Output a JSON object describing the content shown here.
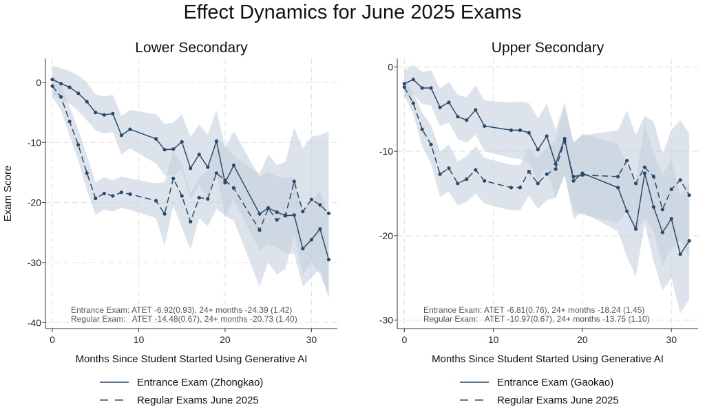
{
  "figure": {
    "title": "Effect Dynamics for June 2025 Exams"
  },
  "colors": {
    "line": "#2b4a6b",
    "band": "#c5d1dc",
    "grid": "#e3e3e3",
    "axis": "#333333",
    "annotation": "#555555"
  },
  "chart_data": [
    {
      "type": "line",
      "title": "Lower Secondary",
      "xlabel": "Months Since Student Started Using Generative AI",
      "ylabel": "Exam Score",
      "xlim": [
        -0.8,
        33
      ],
      "ylim": [
        -41,
        4
      ],
      "xticks": [
        0,
        10,
        20,
        30
      ],
      "yticks": [
        0,
        -10,
        -20,
        -30,
        -40
      ],
      "grid": true,
      "legend_position": "bottom",
      "annotations": [
        "Entrance Exam: ATET -6.92(0.93), 24+ months -24.39 (1.42)",
        "Regular Exam:   ATET -14.48(0.67), 24+ months -20.73 (1.40)"
      ],
      "series": [
        {
          "name": "Entrance Exam (Zhongkao)",
          "style": "solid",
          "points": [
            [
              0,
              0.5
            ],
            [
              1,
              -0.2
            ],
            [
              2,
              -0.8
            ],
            [
              3,
              -1.8
            ],
            [
              4,
              -3.2
            ],
            [
              5,
              -5.0
            ],
            [
              6,
              -5.4
            ],
            [
              7,
              -5.2
            ],
            [
              8,
              -8.8
            ],
            [
              9,
              -7.8
            ],
            [
              12,
              -9.4
            ],
            [
              13,
              -11.2
            ],
            [
              14,
              -11.1
            ],
            [
              15,
              -9.9
            ],
            [
              16,
              -14.3
            ],
            [
              17,
              -12.0
            ],
            [
              18,
              -14.1
            ],
            [
              19,
              -9.8
            ],
            [
              20,
              -16.7
            ],
            [
              21,
              -13.8
            ],
            [
              24,
              -21.9
            ],
            [
              25,
              -20.9
            ],
            [
              26,
              -21.6
            ],
            [
              27,
              -22.2
            ],
            [
              28,
              -22.1
            ],
            [
              29,
              -27.7
            ],
            [
              30,
              -26.2
            ],
            [
              31,
              -24.4
            ],
            [
              32,
              -29.5
            ]
          ],
          "ci_lower": [
            -2.0,
            -2.8,
            -3.5,
            -4.8,
            -6.3,
            -8.0,
            -8.5,
            -8.3,
            -12.0,
            -11.0,
            -13.5,
            -15.5,
            -15.5,
            -14.5,
            -19.5,
            -17.0,
            -19.5,
            -15.0,
            -22.5,
            -19.5,
            -28.0,
            -27.0,
            -27.5,
            -28.5,
            -28.5,
            -34.0,
            -32.5,
            -31.0,
            -36.0
          ],
          "ci_upper": [
            2.8,
            2.4,
            1.9,
            1.2,
            0.0,
            -2.0,
            -2.3,
            -2.1,
            -5.6,
            -4.6,
            -5.3,
            -6.9,
            -6.7,
            -5.3,
            -9.1,
            -7.0,
            -8.7,
            -4.6,
            -10.9,
            -8.1,
            -15.8,
            -14.8,
            -15.7,
            -15.9,
            -15.7,
            -21.4,
            -19.9,
            -17.8,
            -23.0
          ]
        },
        {
          "name": "Regular Exams June 2025",
          "style": "dashed",
          "points": [
            [
              0,
              -0.6
            ],
            [
              1,
              -2.4
            ],
            [
              2,
              -6.5
            ],
            [
              3,
              -10.4
            ],
            [
              4,
              -15.1
            ],
            [
              5,
              -19.3
            ],
            [
              6,
              -18.5
            ],
            [
              7,
              -18.9
            ],
            [
              8,
              -18.3
            ],
            [
              9,
              -18.6
            ],
            [
              12,
              -19.7
            ],
            [
              13,
              -21.9
            ],
            [
              14,
              -16.0
            ],
            [
              15,
              -18.9
            ],
            [
              16,
              -23.2
            ],
            [
              17,
              -19.2
            ],
            [
              18,
              -19.4
            ],
            [
              19,
              -15.1
            ],
            [
              20,
              -16.3
            ],
            [
              21,
              -17.6
            ],
            [
              24,
              -24.6
            ],
            [
              25,
              -21.0
            ],
            [
              26,
              -22.9
            ],
            [
              27,
              -22.1
            ],
            [
              28,
              -16.5
            ],
            [
              29,
              -21.5
            ],
            [
              30,
              -19.5
            ],
            [
              31,
              -20.4
            ],
            [
              32,
              -21.8
            ]
          ],
          "ci_lower": [
            -2.4,
            -4.6,
            -9.0,
            -13.0,
            -18.0,
            -22.0,
            -21.2,
            -21.5,
            -20.9,
            -21.2,
            -22.6,
            -27.2,
            -20.6,
            -24.2,
            -27.8,
            -22.6,
            -24.0,
            -21.0,
            -22.2,
            -23.0,
            -34.0,
            -30.0,
            -32.0,
            -31.0,
            -25.5,
            -32.0,
            -30.0,
            -32.0,
            -35.5
          ],
          "ci_upper": [
            1.2,
            -0.2,
            -4.0,
            -7.8,
            -12.2,
            -16.6,
            -15.8,
            -16.3,
            -15.7,
            -16.0,
            -16.8,
            -16.6,
            -11.4,
            -13.6,
            -18.6,
            -15.8,
            -14.8,
            -9.2,
            -10.4,
            -12.2,
            -15.2,
            -12.0,
            -13.8,
            -13.2,
            -7.5,
            -11.0,
            -9.0,
            -8.8,
            -8.1
          ]
        }
      ]
    },
    {
      "type": "line",
      "title": "Upper Secondary",
      "xlabel": "Months Since Student Started Using Generative AI",
      "ylabel": "",
      "xlim": [
        -0.8,
        33
      ],
      "ylim": [
        -31,
        1
      ],
      "xticks": [
        0,
        10,
        20,
        30
      ],
      "yticks": [
        0,
        -10,
        -20,
        -30
      ],
      "grid": true,
      "legend_position": "bottom",
      "annotations": [
        "Entrance Exam: ATET -6.81(0.76), 24+ months -18.24 (1.45)",
        "Regular Exam:   ATET -10.97(0.67), 24+ months -13.75 (1.10)"
      ],
      "series": [
        {
          "name": "Entrance Exam (Gaokao)",
          "style": "solid",
          "points": [
            [
              0,
              -2.0
            ],
            [
              1,
              -1.5
            ],
            [
              2,
              -2.5
            ],
            [
              3,
              -2.5
            ],
            [
              4,
              -4.8
            ],
            [
              5,
              -4.2
            ],
            [
              6,
              -5.9
            ],
            [
              7,
              -6.3
            ],
            [
              8,
              -5.1
            ],
            [
              9,
              -7.0
            ],
            [
              12,
              -7.5
            ],
            [
              13,
              -7.5
            ],
            [
              14,
              -7.8
            ],
            [
              15,
              -9.8
            ],
            [
              16,
              -8.2
            ],
            [
              17,
              -11.5
            ],
            [
              18,
              -8.5
            ],
            [
              19,
              -13.5
            ],
            [
              20,
              -12.6
            ],
            [
              24,
              -14.3
            ],
            [
              25,
              -17.1
            ],
            [
              26,
              -19.2
            ],
            [
              27,
              -12.6
            ],
            [
              28,
              -16.6
            ],
            [
              29,
              -19.6
            ],
            [
              30,
              -18.0
            ],
            [
              31,
              -22.2
            ],
            [
              32,
              -20.6
            ]
          ],
          "ci_lower": [
            -3.6,
            -3.2,
            -4.4,
            -4.6,
            -7.0,
            -6.6,
            -8.5,
            -9.0,
            -8.0,
            -10.0,
            -10.8,
            -10.9,
            -11.3,
            -13.5,
            -12.0,
            -15.5,
            -12.8,
            -18.0,
            -17.2,
            -19.5,
            -22.5,
            -24.8,
            -18.6,
            -23.0,
            -26.5,
            -25.0,
            -29.2,
            -27.5
          ],
          "ci_upper": [
            -0.4,
            0.2,
            -0.6,
            -0.4,
            -2.6,
            -1.8,
            -3.3,
            -3.6,
            -2.2,
            -4.0,
            -4.2,
            -4.1,
            -4.3,
            -6.1,
            -4.4,
            -7.5,
            -4.2,
            -9.0,
            -8.0,
            -9.1,
            -11.7,
            -13.6,
            -6.6,
            -10.2,
            -12.7,
            -11.0,
            -15.2,
            -13.7
          ]
        },
        {
          "name": "Regular Exams June 2025",
          "style": "dashed",
          "points": [
            [
              0,
              -2.4
            ],
            [
              1,
              -4.3
            ],
            [
              2,
              -7.4
            ],
            [
              3,
              -9.2
            ],
            [
              4,
              -12.7
            ],
            [
              5,
              -12.0
            ],
            [
              6,
              -13.8
            ],
            [
              7,
              -13.3
            ],
            [
              8,
              -12.2
            ],
            [
              9,
              -13.5
            ],
            [
              12,
              -14.3
            ],
            [
              13,
              -14.3
            ],
            [
              14,
              -12.4
            ],
            [
              15,
              -13.8
            ],
            [
              16,
              -12.7
            ],
            [
              17,
              -12.1
            ],
            [
              18,
              -8.8
            ],
            [
              19,
              -13.0
            ],
            [
              20,
              -12.8
            ],
            [
              24,
              -13.0
            ],
            [
              25,
              -11.1
            ],
            [
              26,
              -13.8
            ],
            [
              27,
              -11.9
            ],
            [
              28,
              -13.0
            ],
            [
              29,
              -16.9
            ],
            [
              30,
              -14.5
            ],
            [
              31,
              -13.4
            ],
            [
              32,
              -15.2
            ]
          ],
          "ci_lower": [
            -3.4,
            -5.6,
            -9.4,
            -11.5,
            -15.4,
            -14.8,
            -16.4,
            -16.0,
            -15.0,
            -16.2,
            -17.0,
            -17.0,
            -15.2,
            -16.8,
            -15.8,
            -15.5,
            -12.8,
            -17.0,
            -17.5,
            -18.5,
            -17.0,
            -19.5,
            -18.0,
            -19.5,
            -23.5,
            -21.5,
            -20.5,
            -22.5
          ],
          "ci_upper": [
            -1.4,
            -3.0,
            -5.4,
            -6.9,
            -10.0,
            -9.2,
            -11.2,
            -10.6,
            -9.4,
            -10.8,
            -11.6,
            -11.6,
            -9.6,
            -10.8,
            -9.6,
            -8.7,
            -4.8,
            -9.0,
            -8.1,
            -7.5,
            -5.2,
            -8.1,
            -5.8,
            -6.5,
            -10.3,
            -7.5,
            -6.3,
            -7.9
          ]
        }
      ]
    }
  ]
}
